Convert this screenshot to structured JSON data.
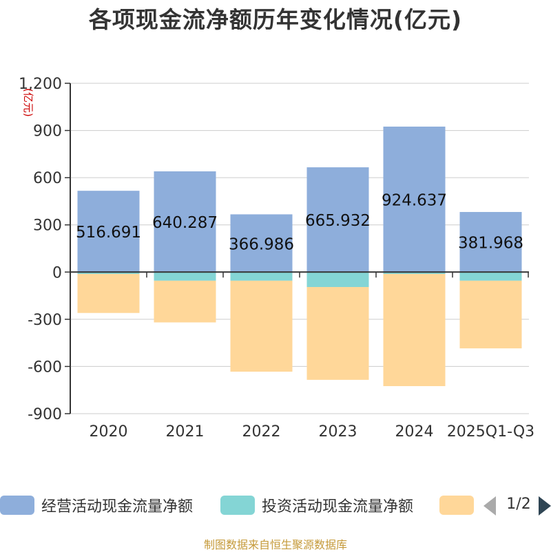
{
  "chart_data": {
    "type": "bar",
    "stacked": true,
    "title": "各项现金流净额历年变化情况(亿元)",
    "ylabel": "(亿元)",
    "ylim": [
      -900,
      1200
    ],
    "yticks": [
      -900,
      -600,
      -300,
      0,
      300,
      600,
      900,
      1200
    ],
    "ytick_labels": [
      "-900",
      "-600",
      "-300",
      "0",
      "300",
      "600",
      "900",
      "1,200"
    ],
    "categories": [
      "2020",
      "2021",
      "2022",
      "2023",
      "2024",
      "2025Q1-Q3"
    ],
    "series": [
      {
        "name": "经营活动现金流量净额",
        "color": "#8eaedb",
        "values": [
          516.691,
          640.287,
          366.986,
          665.932,
          924.637,
          381.968
        ]
      },
      {
        "name": "投资活动现金流量净额",
        "color": "#84d5d5",
        "values": [
          -12,
          -55,
          -55,
          -95,
          -12,
          -55
        ]
      },
      {
        "name": "",
        "color": "#ffd799",
        "values": [
          -248,
          -265,
          -578,
          -590,
          -713,
          -430
        ]
      }
    ],
    "data_labels": [
      "516.691",
      "640.287",
      "366.986",
      "665.932",
      "924.637",
      "381.968"
    ],
    "grid": true
  },
  "legend": {
    "items": [
      {
        "label": "经营活动现金流量净额",
        "color": "#8eaedb"
      },
      {
        "label": "投资活动现金流量净额",
        "color": "#84d5d5"
      },
      {
        "label": "",
        "color": "#ffd799"
      }
    ],
    "page": "1/2"
  },
  "source": "制图数据来自恒生聚源数据库"
}
